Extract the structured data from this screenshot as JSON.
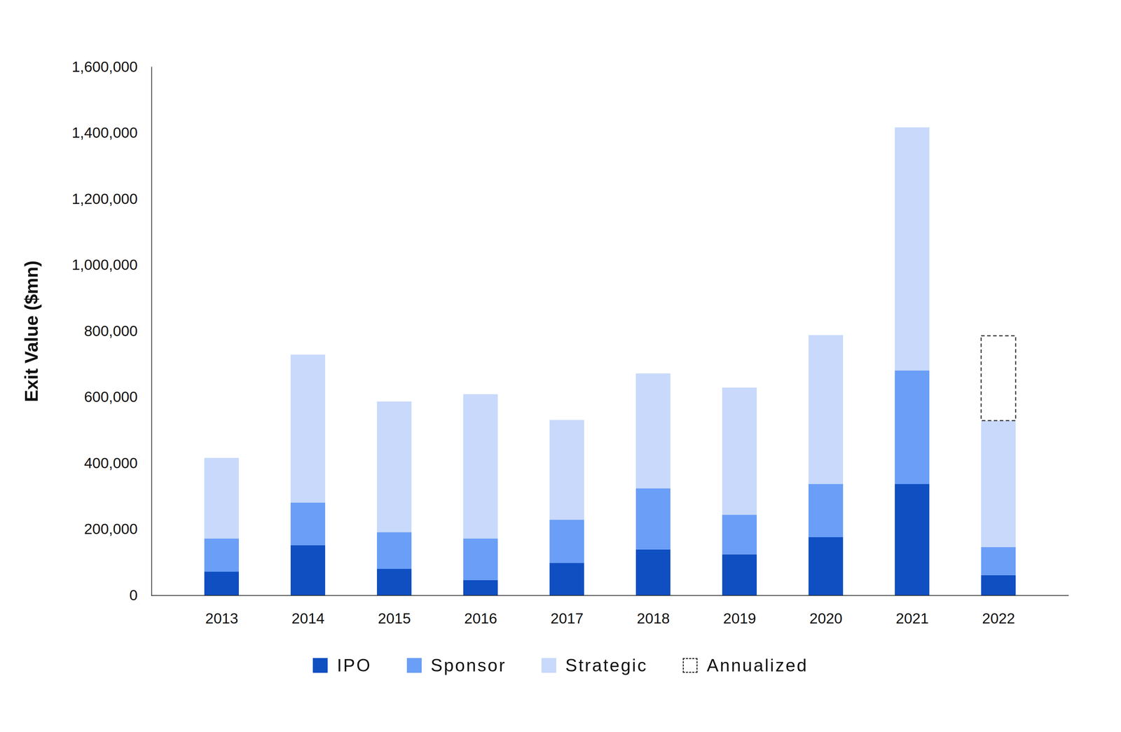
{
  "chart_data": {
    "type": "bar",
    "stacked": true,
    "y_label": "Exit Value ($mn)",
    "categories": [
      "2013",
      "2014",
      "2015",
      "2016",
      "2017",
      "2018",
      "2019",
      "2020",
      "2021",
      "2022"
    ],
    "series": [
      {
        "name": "IPO",
        "color": "#0f4fc2",
        "values": [
          72000,
          152000,
          80000,
          46000,
          98000,
          139000,
          124000,
          176000,
          337000,
          61000
        ]
      },
      {
        "name": "Sponsor",
        "color": "#6a9ef7",
        "values": [
          100000,
          129000,
          111000,
          126000,
          131000,
          185000,
          120000,
          161000,
          344000,
          85000
        ]
      },
      {
        "name": "Strategic",
        "color": "#c8d9fb",
        "values": [
          244000,
          448000,
          396000,
          437000,
          302000,
          348000,
          385000,
          451000,
          736000,
          383000
        ]
      },
      {
        "name": "Annualized",
        "color": "#333333",
        "line_style": "dashed",
        "values": [
          null,
          null,
          null,
          null,
          null,
          null,
          null,
          null,
          null,
          257000
        ]
      }
    ],
    "ylim": [
      0,
      1600000
    ],
    "yticks": [
      0,
      {
        "value": 200000,
        "label": "200,000"
      },
      {
        "value": 400000,
        "label": "400,000"
      },
      {
        "value": 600000,
        "label": "600,000"
      },
      {
        "value": 800000,
        "label": "800,000"
      },
      {
        "value": 1000000,
        "label": "1,000,000"
      },
      {
        "value": 1200000,
        "label": "1,200,000"
      },
      {
        "value": 1400000,
        "label": "1,400,000"
      },
      {
        "value": 1600000,
        "label": "1,600,000"
      }
    ],
    "grid": false,
    "legend": "bottom"
  }
}
